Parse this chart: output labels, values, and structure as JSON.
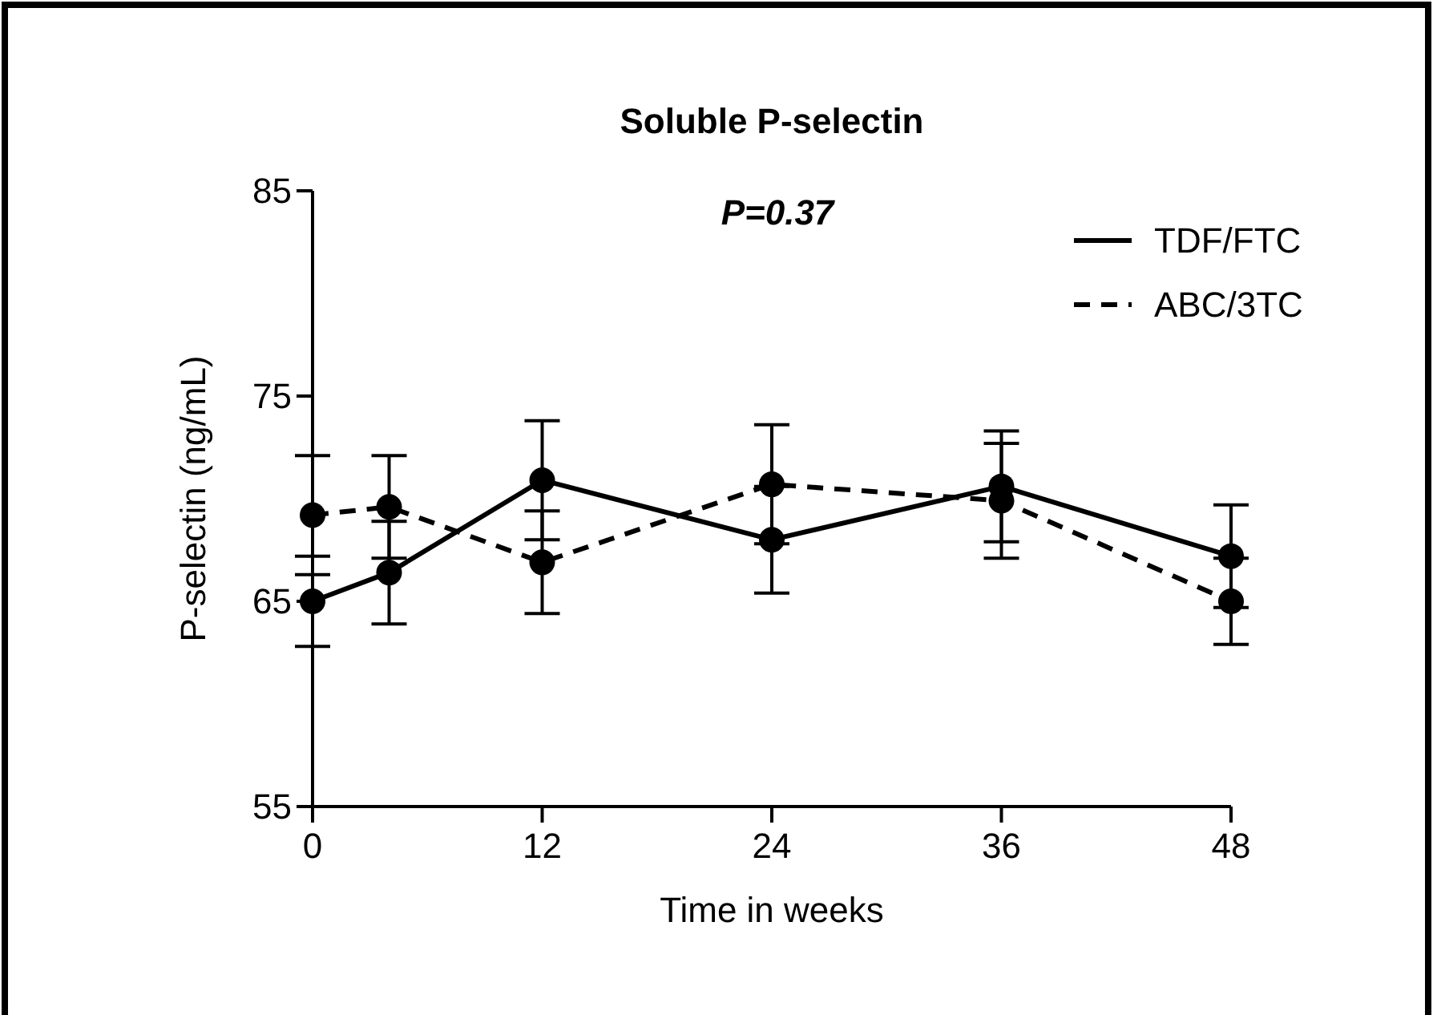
{
  "chart_data": {
    "type": "line",
    "title": "Soluble P-selectin",
    "xlabel": "Time in weeks",
    "ylabel": "P-selectin (ng/mL)",
    "annotations": [
      "P=0.37"
    ],
    "x": [
      0,
      4,
      12,
      24,
      36,
      48
    ],
    "series": [
      {
        "name": "TDF/FTC",
        "color": "#000000",
        "line_style": "solid",
        "values": [
          65.0,
          66.4,
          70.9,
          68.0,
          70.6,
          67.2
        ],
        "errors": [
          2.2,
          2.5,
          2.9,
          2.6,
          2.7,
          2.5
        ]
      },
      {
        "name": "ABC/3TC",
        "color": "#000000",
        "line_style": "dashed",
        "values": [
          69.2,
          69.6,
          66.9,
          70.7,
          69.9,
          65.0
        ],
        "errors": [
          2.9,
          2.5,
          2.5,
          2.9,
          2.8,
          2.1
        ]
      }
    ],
    "xlim": [
      0,
      48
    ],
    "xticks": [
      0,
      12,
      24,
      36,
      48
    ],
    "ylim": [
      55,
      85
    ],
    "yticks": [
      55,
      65,
      75,
      85
    ],
    "marker": "circle",
    "legend": "top right",
    "grid": false
  }
}
